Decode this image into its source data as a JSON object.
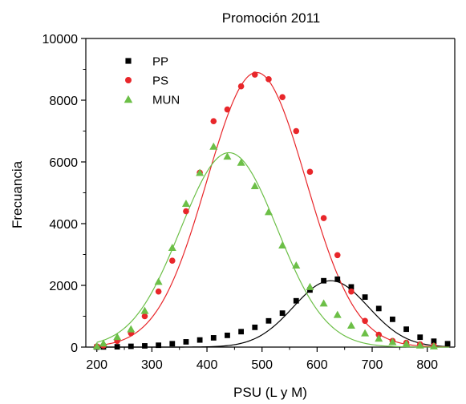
{
  "chart_data": {
    "type": "scatter",
    "title": "Promoción 2011",
    "xlabel": "PSU (L y M)",
    "ylabel": "Frecuancia",
    "xlim": [
      180,
      850
    ],
    "ylim": [
      0,
      10000
    ],
    "xticks": [
      200,
      300,
      400,
      500,
      600,
      700,
      800
    ],
    "yticks": [
      0,
      2000,
      4000,
      6000,
      8000,
      10000
    ],
    "legend_position": "top-left",
    "grid": false,
    "series": [
      {
        "name": "PP",
        "marker": "square",
        "color": "#000000",
        "points": [
          [
            200,
            0
          ],
          [
            212,
            5
          ],
          [
            237,
            10
          ],
          [
            262,
            25
          ],
          [
            287,
            40
          ],
          [
            312,
            60
          ],
          [
            337,
            110
          ],
          [
            362,
            170
          ],
          [
            387,
            230
          ],
          [
            412,
            300
          ],
          [
            437,
            380
          ],
          [
            462,
            500
          ],
          [
            487,
            640
          ],
          [
            512,
            850
          ],
          [
            537,
            1100
          ],
          [
            562,
            1500
          ],
          [
            587,
            1850
          ],
          [
            612,
            2150
          ],
          [
            637,
            2200
          ],
          [
            662,
            1950
          ],
          [
            687,
            1620
          ],
          [
            712,
            1250
          ],
          [
            737,
            900
          ],
          [
            762,
            580
          ],
          [
            787,
            320
          ],
          [
            812,
            190
          ],
          [
            837,
            110
          ]
        ],
        "fit": {
          "peak": 2150,
          "center": 625,
          "sigma": 68
        }
      },
      {
        "name": "PS",
        "marker": "circle",
        "color": "#e8262a",
        "points": [
          [
            200,
            20
          ],
          [
            212,
            50
          ],
          [
            237,
            200
          ],
          [
            262,
            450
          ],
          [
            287,
            1000
          ],
          [
            312,
            1800
          ],
          [
            337,
            2800
          ],
          [
            362,
            4400
          ],
          [
            387,
            5650
          ],
          [
            412,
            7320
          ],
          [
            437,
            7700
          ],
          [
            462,
            8450
          ],
          [
            487,
            8830
          ],
          [
            512,
            8680
          ],
          [
            537,
            8100
          ],
          [
            562,
            7000
          ],
          [
            587,
            5680
          ],
          [
            612,
            4180
          ],
          [
            637,
            2980
          ],
          [
            662,
            1800
          ],
          [
            687,
            850
          ],
          [
            712,
            400
          ],
          [
            737,
            200
          ],
          [
            762,
            140
          ],
          [
            787,
            90
          ],
          [
            812,
            40
          ]
        ],
        "fit": {
          "peak": 8900,
          "center": 490,
          "sigma": 90
        }
      },
      {
        "name": "MUN",
        "marker": "triangle",
        "color": "#6cbf47",
        "points": [
          [
            200,
            30
          ],
          [
            212,
            120
          ],
          [
            237,
            330
          ],
          [
            262,
            580
          ],
          [
            287,
            1180
          ],
          [
            312,
            2120
          ],
          [
            337,
            3220
          ],
          [
            362,
            4650
          ],
          [
            387,
            5650
          ],
          [
            412,
            6500
          ],
          [
            437,
            6180
          ],
          [
            462,
            5980
          ],
          [
            487,
            5220
          ],
          [
            512,
            4380
          ],
          [
            537,
            3300
          ],
          [
            562,
            2650
          ],
          [
            587,
            1950
          ],
          [
            612,
            1420
          ],
          [
            637,
            1050
          ],
          [
            662,
            700
          ],
          [
            687,
            450
          ],
          [
            712,
            280
          ],
          [
            737,
            170
          ],
          [
            762,
            110
          ],
          [
            787,
            60
          ],
          [
            812,
            30
          ]
        ],
        "fit": {
          "peak": 6300,
          "center": 440,
          "sigma": 88
        }
      }
    ]
  }
}
